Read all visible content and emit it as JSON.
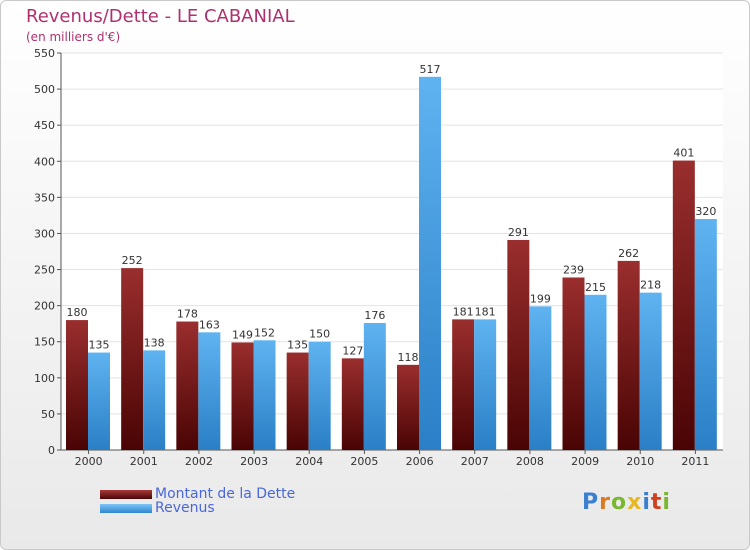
{
  "title": "Revenus/Dette - LE CABANIAL",
  "subtitle": "(en milliers d'€)",
  "logo": "Proxiti",
  "colors": {
    "dette": "#7a1a1a",
    "revenus": "#4aa3e8",
    "title": "#b0306f",
    "legend_text": "#4a67d6",
    "grid": "#e3e3e3"
  },
  "chart_data": {
    "type": "bar",
    "categories": [
      "2000",
      "2001",
      "2002",
      "2003",
      "2004",
      "2005",
      "2006",
      "2007",
      "2008",
      "2009",
      "2010",
      "2011"
    ],
    "series": [
      {
        "name": "Montant de la Dette",
        "values": [
          180,
          252,
          178,
          149,
          135,
          127,
          118,
          181,
          291,
          239,
          262,
          401
        ]
      },
      {
        "name": "Revenus",
        "values": [
          135,
          138,
          163,
          152,
          150,
          176,
          517,
          181,
          199,
          215,
          218,
          320
        ]
      }
    ],
    "ylim": [
      0,
      550
    ],
    "yticks": [
      0,
      50,
      100,
      150,
      200,
      250,
      300,
      350,
      400,
      450,
      500,
      550
    ],
    "grid": true,
    "legend_position": "bottom-left"
  }
}
